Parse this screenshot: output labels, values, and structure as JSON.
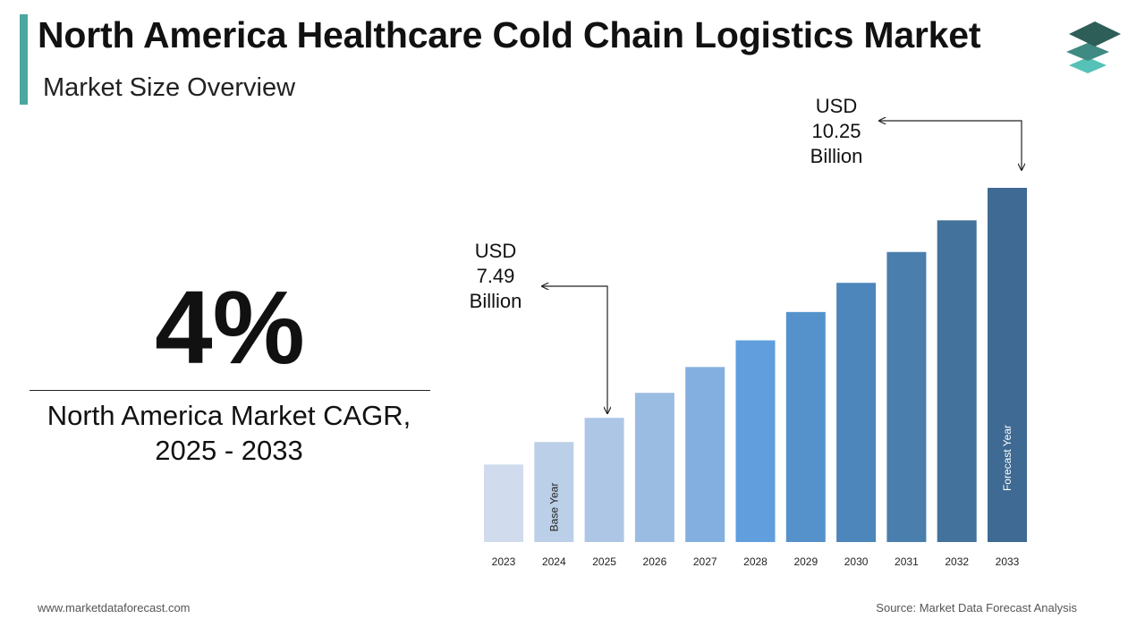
{
  "header": {
    "title": "North America Healthcare Cold Chain Logistics Market",
    "subtitle": "Market Size Overview"
  },
  "cagr": {
    "value": "4%",
    "label_line1": "North America Market CAGR,",
    "label_line2": "2025 - 2033"
  },
  "footer": {
    "website": "www.marketdataforecast.com",
    "source": "Source: Market Data Forecast Analysis"
  },
  "colors": {
    "accent": "#4aa8a0",
    "logo_top": "#2e5e58",
    "logo_mid": "#3f8a82",
    "logo_bottom": "#56c1b6"
  },
  "logo": {
    "icon": "stacked-layers-icon"
  },
  "chart_data": {
    "type": "bar",
    "title": "",
    "xlabel": "",
    "ylabel": "",
    "categories": [
      "2023",
      "2024",
      "2025",
      "2026",
      "2027",
      "2028",
      "2029",
      "2030",
      "2031",
      "2032",
      "2033"
    ],
    "values": [
      6.93,
      7.2,
      7.49,
      7.79,
      8.1,
      8.42,
      8.76,
      9.11,
      9.48,
      9.86,
      10.25
    ],
    "ylim": [
      6.0,
      10.25
    ],
    "grid": false,
    "bar_colors": [
      "#d0dcee",
      "#bccfe8",
      "#aec6e6",
      "#9abce2",
      "#82afe0",
      "#609edd",
      "#5592cc",
      "#4d86ba",
      "#4a7eac",
      "#43729c",
      "#3e6a93"
    ],
    "bar_labels": {
      "2024": "Base Year",
      "2033": "Forecast Year"
    },
    "annotations": [
      {
        "category": "2025",
        "lines": [
          "USD",
          "7.49",
          "Billion"
        ]
      },
      {
        "category": "2033",
        "lines": [
          "USD",
          "10.25",
          "Billion"
        ]
      }
    ]
  }
}
